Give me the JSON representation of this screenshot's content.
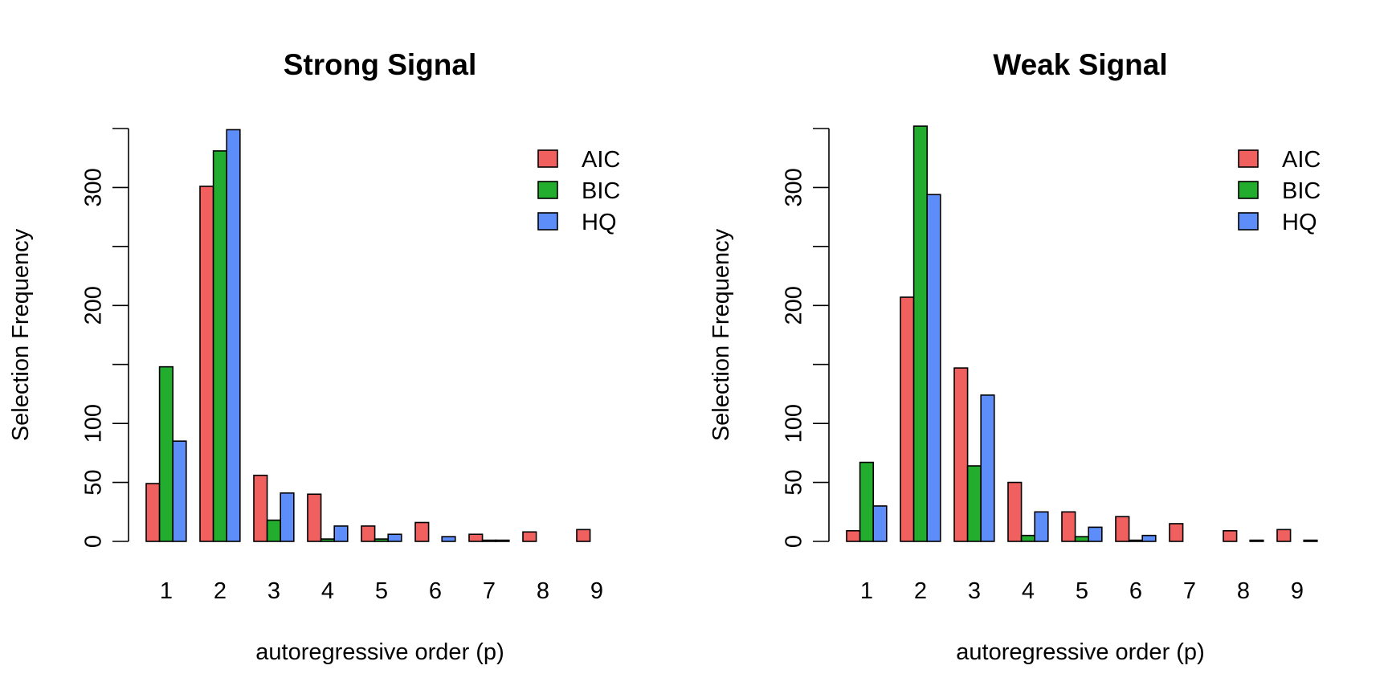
{
  "chart_data": [
    {
      "type": "bar",
      "title": "Strong Signal",
      "xlabel": "autoregressive order (p)",
      "ylabel": "Selection Frequency",
      "categories": [
        "1",
        "2",
        "3",
        "4",
        "5",
        "6",
        "7",
        "8",
        "9"
      ],
      "yticks": [
        0,
        50,
        100,
        200,
        300
      ],
      "ylim": [
        0,
        350
      ],
      "legend": "top-right",
      "grid": false,
      "series": [
        {
          "name": "AIC",
          "color": "#f0605e",
          "values": [
            49,
            301,
            56,
            40,
            13,
            16,
            6,
            8,
            10
          ]
        },
        {
          "name": "BIC",
          "color": "#22ad2e",
          "values": [
            148,
            331,
            18,
            2,
            2,
            0,
            1,
            0,
            0
          ]
        },
        {
          "name": "HQ",
          "color": "#5d8df8",
          "values": [
            85,
            349,
            41,
            13,
            6,
            4,
            1,
            0,
            0
          ]
        }
      ]
    },
    {
      "type": "bar",
      "title": "Weak Signal",
      "xlabel": "autoregressive order (p)",
      "ylabel": "Selection Frequency",
      "categories": [
        "1",
        "2",
        "3",
        "4",
        "5",
        "6",
        "7",
        "8",
        "9"
      ],
      "yticks": [
        0,
        50,
        100,
        200,
        300
      ],
      "ylim": [
        0,
        350
      ],
      "legend": "top-right",
      "grid": false,
      "series": [
        {
          "name": "AIC",
          "color": "#f0605e",
          "values": [
            9,
            207,
            147,
            50,
            25,
            21,
            15,
            9,
            10
          ]
        },
        {
          "name": "BIC",
          "color": "#22ad2e",
          "values": [
            67,
            352,
            64,
            5,
            4,
            1,
            0,
            0,
            0
          ]
        },
        {
          "name": "HQ",
          "color": "#5d8df8",
          "values": [
            30,
            294,
            124,
            25,
            12,
            5,
            0,
            1,
            1
          ]
        }
      ]
    }
  ]
}
